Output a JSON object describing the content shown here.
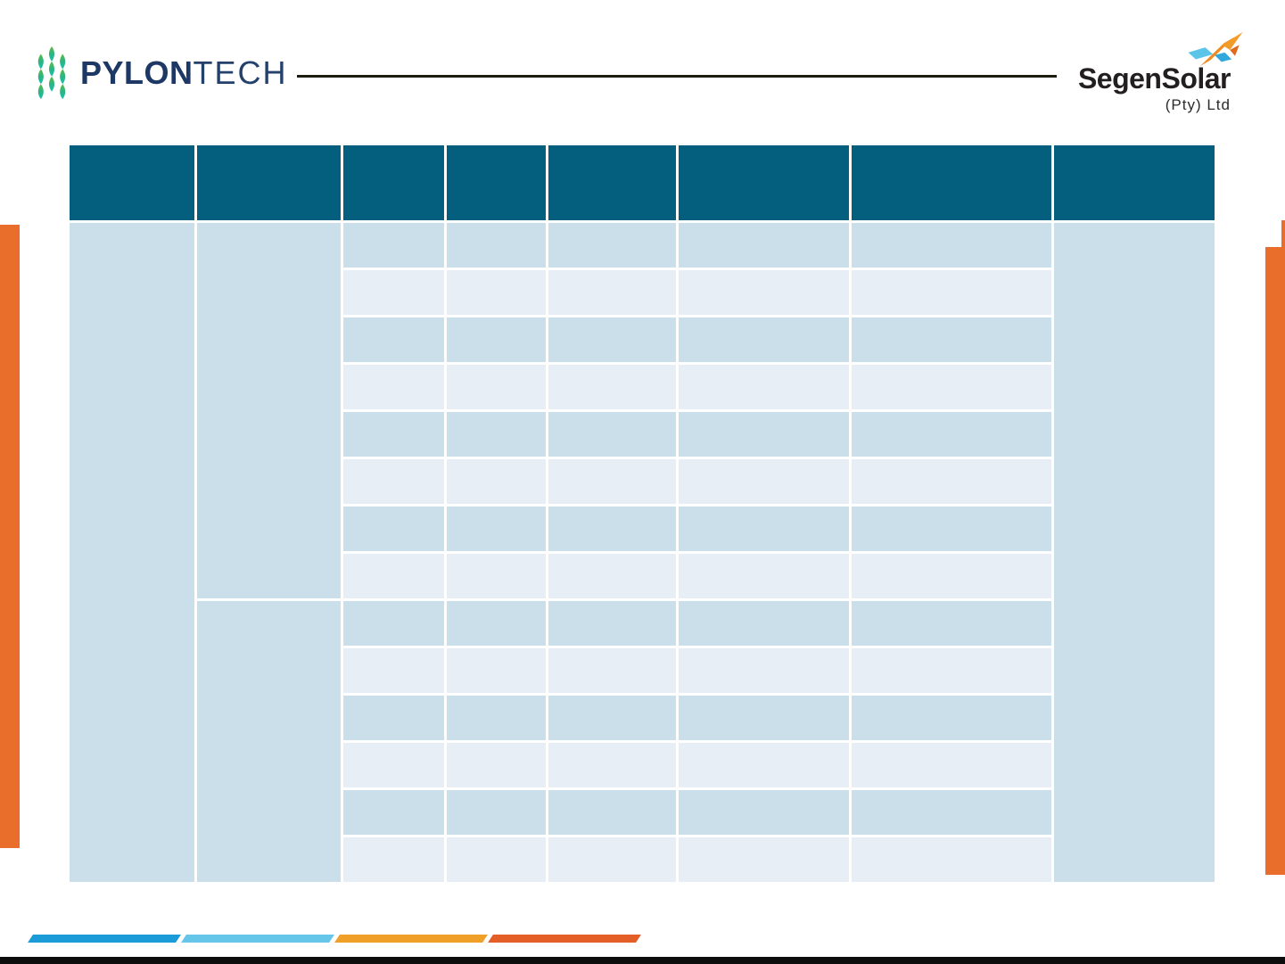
{
  "brand": {
    "pylontech": {
      "icon": "pylontech-diamond-icon",
      "name_bold": "PYLON",
      "name_light": "TECH"
    },
    "segensolar": {
      "icon": "segen-star-icon",
      "name": "SegenSolar",
      "subtitle": "(Pty) Ltd"
    }
  },
  "table": {
    "columns": 8,
    "header_labels": [
      "",
      "",
      "",
      "",
      "",
      "",
      "",
      ""
    ],
    "body_rows": 14,
    "col1_merged_rows": 14,
    "col2_sections": [
      8,
      6
    ],
    "col8_merged_rows": 14,
    "cell_text": "",
    "colors": {
      "header": "#045e7e",
      "row_dark": "#cbdfea",
      "row_light": "#e8eef5"
    }
  },
  "accents": {
    "side_bar_color": "#e96e2c"
  },
  "footer": {
    "bars": [
      {
        "name": "footer-bar-blue",
        "color": "#1b9cd8"
      },
      {
        "name": "footer-bar-light-blue",
        "color": "#66c6ea"
      },
      {
        "name": "footer-bar-amber",
        "color": "#f09f28"
      },
      {
        "name": "footer-bar-orange",
        "color": "#e45f27"
      }
    ],
    "bottom_rule_color": "#0d0d0d"
  }
}
